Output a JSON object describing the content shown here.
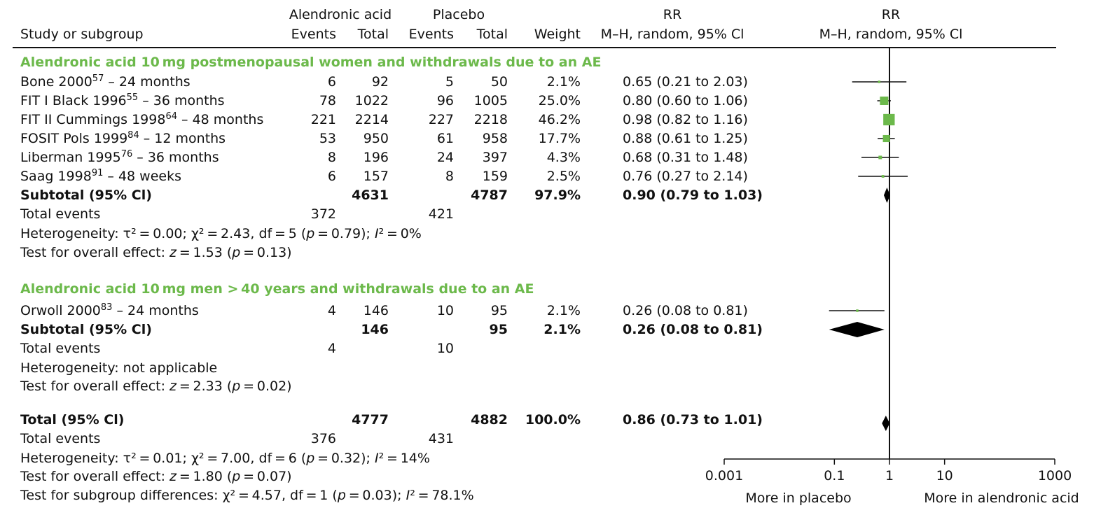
{
  "header": {
    "study_label": "Study or subgroup",
    "group1": "Alendronic acid",
    "group2": "Placebo",
    "events": "Events",
    "total": "Total",
    "weight": "Weight",
    "rr_title": "RR",
    "rr_method": "M–H, random, 95% Cl"
  },
  "subgroup1": {
    "title": "Alendronic acid 10 mg postmenopausal women and withdrawals due to an AE",
    "studies": [
      {
        "name": "Bone 2000",
        "ref": "57",
        "suffix": " – 24 months",
        "e1": "6",
        "t1": "92",
        "e2": "5",
        "t2": "50",
        "w": "2.1%",
        "ci": "0.65 (0.21 to 2.03)"
      },
      {
        "name": "FIT I Black 1996",
        "ref": "55",
        "suffix": " – 36 months",
        "e1": "78",
        "t1": "1022",
        "e2": "96",
        "t2": "1005",
        "w": "25.0%",
        "ci": "0.80 (0.60 to 1.06)"
      },
      {
        "name": "FIT II Cummings 1998",
        "ref": "64",
        "suffix": " – 48 months",
        "e1": "221",
        "t1": "2214",
        "e2": "227",
        "t2": "2218",
        "w": "46.2%",
        "ci": "0.98 (0.82 to 1.16)"
      },
      {
        "name": "FOSIT Pols 1999",
        "ref": "84",
        "suffix": " – 12 months",
        "e1": "53",
        "t1": "950",
        "e2": "61",
        "t2": "958",
        "w": "17.7%",
        "ci": "0.88 (0.61 to 1.25)"
      },
      {
        "name": "Liberman 1995",
        "ref": "76",
        "suffix": " – 36 months",
        "e1": "8",
        "t1": "196",
        "e2": "24",
        "t2": "397",
        "w": "4.3%",
        "ci": "0.68 (0.31 to 1.48)"
      },
      {
        "name": "Saag 1998",
        "ref": "91",
        "suffix": " – 48 weeks",
        "e1": "6",
        "t1": "157",
        "e2": "8",
        "t2": "159",
        "w": "2.5%",
        "ci": "0.76 (0.27 to 2.14)"
      }
    ],
    "subtotal": {
      "label": "Subtotal (95% Cl)",
      "t1": "4631",
      "t2": "4787",
      "w": "97.9%",
      "ci": "0.90 (0.79 to 1.03)"
    },
    "events_label": "Total events",
    "events1": "372",
    "events2": "421",
    "het_text": "Heterogeneity: τ² = 0.00; χ² = 2.43, df = 5 (p = 0.79); I² = 0%",
    "effect_text": "Test for overall effect: z = 1.53 (p = 0.13)"
  },
  "subgroup2": {
    "title": "Alendronic acid 10 mg men > 40 years and withdrawals due to an AE",
    "studies": [
      {
        "name": "Orwoll 2000",
        "ref": "83",
        "suffix": " – 24 months",
        "e1": "4",
        "t1": "146",
        "e2": "10",
        "t2": "95",
        "w": "2.1%",
        "ci": "0.26 (0.08 to 0.81)"
      }
    ],
    "subtotal": {
      "label": "Subtotal (95% Cl)",
      "t1": "146",
      "t2": "95",
      "w": "2.1%",
      "ci": "0.26 (0.08 to 0.81)"
    },
    "events_label": "Total events",
    "events1": "4",
    "events2": "10",
    "het_text": "Heterogeneity: not applicable",
    "effect_text": "Test for overall effect: z = 2.33 (p = 0.02)"
  },
  "overall": {
    "label": "Total (95% Cl)",
    "t1": "4777",
    "t2": "4882",
    "w": "100.0%",
    "ci": "0.86 (0.73 to 1.01)",
    "events_label": "Total events",
    "events1": "376",
    "events2": "431",
    "het_text": "Heterogeneity: τ² = 0.01; χ² = 7.00, df = 6 (p = 0.32); I² = 14%",
    "effect_text": "Test for overall effect: z = 1.80 (p = 0.07)",
    "subgroup_diff_text": "Test for subgroup differences: χ² = 4.57, df = 1 (p = 0.03); I² = 78.1%"
  },
  "axis": {
    "ticks": [
      "0.001",
      "0.1",
      "1",
      "10",
      "1000"
    ],
    "left_label": "More in placebo",
    "right_label": "More in alendronic acid"
  },
  "colors": {
    "accent": "#6cb94b",
    "diamond": "#000000",
    "line": "#111111"
  },
  "chart_data": {
    "type": "forest",
    "scale": "log",
    "xlim": [
      0.001,
      1000
    ],
    "x_ticks": [
      0.001,
      0.1,
      1,
      10,
      1000
    ],
    "null_line": 1,
    "studies": [
      {
        "name": "Bone 2000",
        "rr": 0.65,
        "lo": 0.21,
        "hi": 2.03,
        "weight": 2.1
      },
      {
        "name": "FIT I Black 1996",
        "rr": 0.8,
        "lo": 0.6,
        "hi": 1.06,
        "weight": 25.0
      },
      {
        "name": "FIT II Cummings 1998",
        "rr": 0.98,
        "lo": 0.82,
        "hi": 1.16,
        "weight": 46.2
      },
      {
        "name": "FOSIT Pols 1999",
        "rr": 0.88,
        "lo": 0.61,
        "hi": 1.25,
        "weight": 17.7
      },
      {
        "name": "Liberman 1995",
        "rr": 0.68,
        "lo": 0.31,
        "hi": 1.48,
        "weight": 4.3
      },
      {
        "name": "Saag 1998",
        "rr": 0.76,
        "lo": 0.27,
        "hi": 2.14,
        "weight": 2.5
      },
      {
        "name": "Orwoll 2000",
        "rr": 0.26,
        "lo": 0.08,
        "hi": 0.81,
        "weight": 2.1
      }
    ],
    "pooled": [
      {
        "name": "Subtotal women",
        "rr": 0.9,
        "lo": 0.79,
        "hi": 1.03
      },
      {
        "name": "Subtotal men",
        "rr": 0.26,
        "lo": 0.08,
        "hi": 0.81
      },
      {
        "name": "Total",
        "rr": 0.86,
        "lo": 0.73,
        "hi": 1.01
      }
    ]
  }
}
